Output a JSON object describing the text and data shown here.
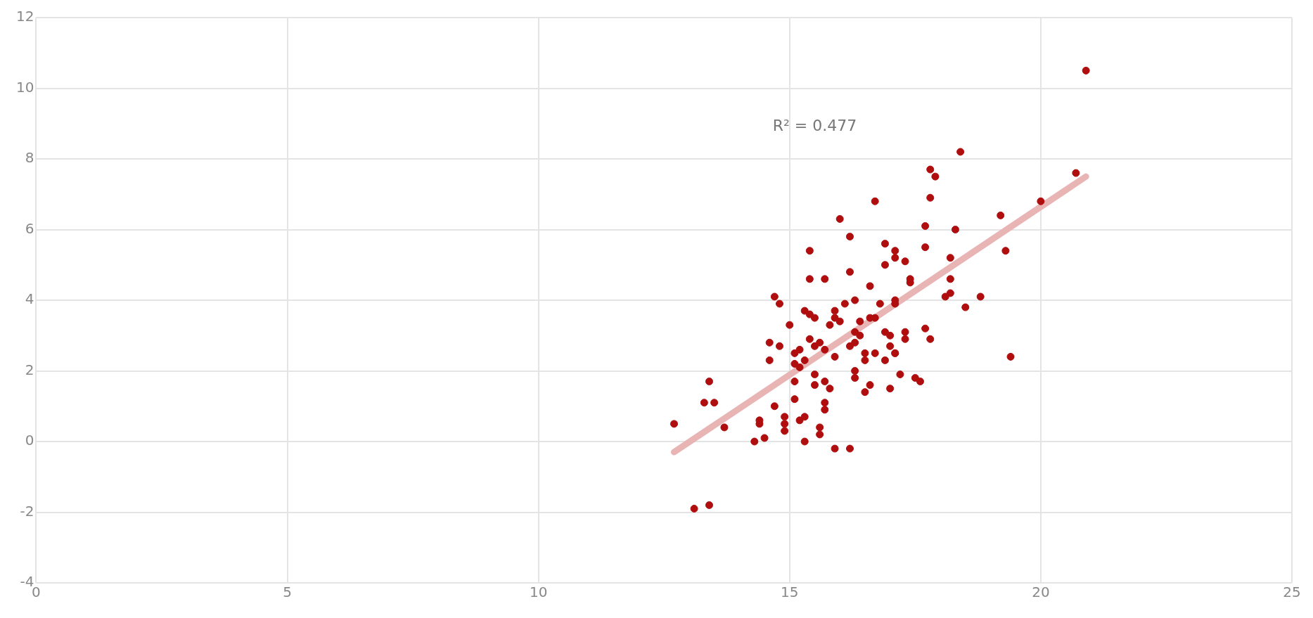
{
  "chart_data": {
    "type": "scatter",
    "series": [
      {
        "type": "scatter",
        "marker": "circle",
        "color": "#b00e0e",
        "x": [
          12.7,
          13.1,
          13.4,
          13.4,
          13.3,
          13.5,
          13.7,
          14.3,
          14.4,
          14.4,
          14.5,
          14.6,
          14.6,
          14.7,
          14.8,
          14.7,
          14.8,
          14.9,
          14.9,
          14.9,
          15.0,
          15.1,
          15.1,
          15.1,
          15.1,
          15.2,
          15.2,
          15.2,
          15.3,
          15.3,
          15.3,
          15.4,
          15.4,
          15.4,
          15.4,
          15.5,
          15.5,
          15.5,
          15.5,
          15.3,
          15.6,
          15.6,
          15.6,
          15.7,
          15.7,
          15.7,
          15.7,
          15.7,
          15.8,
          15.8,
          15.9,
          15.9,
          15.9,
          16.0,
          15.9,
          16.1,
          16.0,
          16.2,
          16.2,
          16.2,
          16.2,
          16.3,
          16.3,
          16.4,
          16.3,
          16.3,
          16.4,
          16.3,
          16.5,
          16.5,
          16.6,
          16.5,
          16.6,
          16.6,
          16.7,
          16.8,
          16.7,
          16.7,
          16.9,
          17.0,
          16.9,
          16.9,
          16.9,
          17.1,
          17.0,
          17.0,
          17.1,
          17.1,
          17.1,
          17.1,
          17.1,
          17.2,
          17.3,
          17.3,
          17.3,
          17.4,
          17.4,
          17.5,
          17.6,
          17.7,
          17.7,
          17.7,
          17.8,
          17.8,
          17.8,
          17.9,
          18.1,
          18.2,
          18.2,
          18.2,
          18.3,
          18.4,
          18.5,
          18.8,
          19.2,
          19.3,
          19.4,
          20.0,
          20.7,
          20.9
        ],
        "values": [
          0.5,
          -1.9,
          -1.8,
          1.7,
          1.1,
          1.1,
          0.4,
          0.0,
          0.5,
          0.6,
          0.1,
          2.8,
          2.3,
          4.1,
          3.9,
          1.0,
          2.7,
          0.3,
          0.5,
          0.7,
          3.3,
          1.7,
          1.2,
          2.5,
          2.2,
          2.1,
          0.6,
          2.6,
          2.3,
          3.7,
          0.7,
          4.6,
          5.4,
          3.6,
          2.9,
          2.7,
          3.5,
          1.9,
          1.6,
          0.0,
          0.4,
          0.2,
          2.8,
          1.7,
          1.1,
          0.9,
          4.6,
          2.6,
          3.3,
          1.5,
          2.4,
          3.5,
          3.7,
          3.4,
          -0.2,
          3.9,
          6.3,
          -0.2,
          4.8,
          5.8,
          2.7,
          3.1,
          2.8,
          3.0,
          2.0,
          1.8,
          3.4,
          4.0,
          2.5,
          2.3,
          3.5,
          1.4,
          4.4,
          1.6,
          3.5,
          3.9,
          2.5,
          6.8,
          3.1,
          3.0,
          2.3,
          5.6,
          5.0,
          3.9,
          1.5,
          2.7,
          2.5,
          4.0,
          5.4,
          5.2,
          2.5,
          1.9,
          5.1,
          3.1,
          2.9,
          4.5,
          4.6,
          1.8,
          1.7,
          3.2,
          5.5,
          6.1,
          7.7,
          6.9,
          2.9,
          7.5,
          4.1,
          4.6,
          5.2,
          4.2,
          6.0,
          8.2,
          3.8,
          4.1,
          6.4,
          5.4,
          2.4,
          6.8,
          7.6,
          10.5
        ]
      },
      {
        "type": "line",
        "marker": "none",
        "color": "#e8b4b4",
        "x": [
          12.7,
          20.9
        ],
        "values": [
          -0.3,
          7.5
        ]
      }
    ],
    "xlim": [
      0,
      25
    ],
    "xticks": [
      0,
      5,
      10,
      15,
      20,
      25
    ],
    "ylim": [
      -4,
      12
    ],
    "yticks": [
      -4,
      -2,
      0,
      2,
      4,
      6,
      8,
      10,
      12
    ],
    "grid": true,
    "legend": false,
    "annotations": [
      "R² = 0.477"
    ]
  }
}
